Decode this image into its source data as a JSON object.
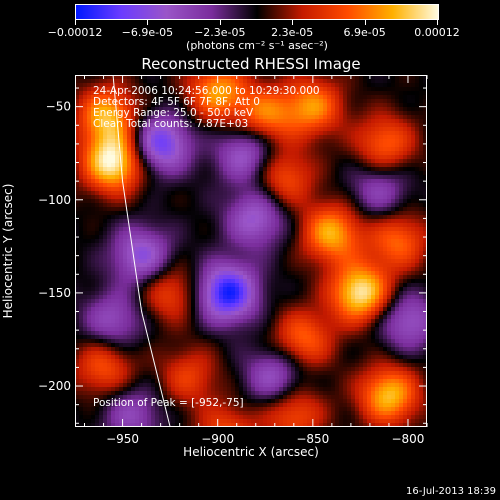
{
  "colorbar": {
    "tick_labels": [
      "-0.00012",
      "-6.9e-05",
      "-2.3e-05",
      "2.3e-05",
      "6.9e-05",
      "0.00012"
    ],
    "unit_label": "(photons cm⁻² s⁻¹ asec⁻²)",
    "range": [
      -0.00012,
      0.00012
    ],
    "colors": [
      "#0018ff",
      "#6b3cff",
      "#9a55c8",
      "#7a2d9c",
      "#000000",
      "#c41a00",
      "#ff4a00",
      "#ffb000",
      "#fffbe0"
    ]
  },
  "chart_data": {
    "type": "heatmap",
    "title": "Reconstructed RHESSI Image",
    "xlabel": "Heliocentric X (arcsec)",
    "ylabel": "Heliocentric Y (arcsec)",
    "xlim": [
      -975,
      -790
    ],
    "ylim": [
      -222,
      -33
    ],
    "x_ticks": [
      -950,
      -900,
      -850,
      -800
    ],
    "y_ticks": [
      -50,
      -100,
      -150,
      -200
    ],
    "x_tick_labels": [
      "−950",
      "−900",
      "−850",
      "−800"
    ],
    "y_tick_labels": [
      "−50",
      "−100",
      "−150",
      "−200"
    ],
    "annotations": [
      "24-Apr-2006 10:24:56.000 to 10:29:30.000",
      "Detectors: 4F 5F 6F 7F 8F, Att 0",
      "Energy Range: 25.0 - 50.0 keV",
      "Clean    Total counts: 7.87E+03"
    ],
    "peak_label": "Position of Peak = [-952,-75]",
    "peak_position": [
      -952,
      -75
    ],
    "limb_arc": [
      [
        -955,
        -33
      ],
      [
        -950,
        -90
      ],
      [
        -940,
        -160
      ],
      [
        -925,
        -222
      ]
    ],
    "blobs": [
      {
        "x": -955,
        "y": -80,
        "v": 1.0
      },
      {
        "x": -958,
        "y": -55,
        "v": 0.75
      },
      {
        "x": -900,
        "y": -42,
        "v": 0.7
      },
      {
        "x": -875,
        "y": -55,
        "v": 0.6
      },
      {
        "x": -850,
        "y": -50,
        "v": 0.65
      },
      {
        "x": -865,
        "y": -88,
        "v": 0.5
      },
      {
        "x": -812,
        "y": -70,
        "v": 0.55
      },
      {
        "x": -840,
        "y": -118,
        "v": 0.75
      },
      {
        "x": -805,
        "y": -122,
        "v": 0.55
      },
      {
        "x": -925,
        "y": -150,
        "v": 0.45
      },
      {
        "x": -915,
        "y": -195,
        "v": 0.4
      },
      {
        "x": -960,
        "y": -190,
        "v": 0.5
      },
      {
        "x": -825,
        "y": -150,
        "v": 0.95
      },
      {
        "x": -855,
        "y": -175,
        "v": 0.55
      },
      {
        "x": -810,
        "y": -205,
        "v": 0.8
      },
      {
        "x": -860,
        "y": -215,
        "v": 0.5
      },
      {
        "x": -895,
        "y": -225,
        "v": 0.45
      },
      {
        "x": -940,
        "y": -130,
        "v": -0.6
      },
      {
        "x": -930,
        "y": -70,
        "v": -0.75
      },
      {
        "x": -895,
        "y": -150,
        "v": -0.95
      },
      {
        "x": -880,
        "y": -110,
        "v": -0.55
      },
      {
        "x": -885,
        "y": -75,
        "v": -0.55
      },
      {
        "x": -955,
        "y": -165,
        "v": -0.45
      },
      {
        "x": -870,
        "y": -195,
        "v": -0.5
      },
      {
        "x": -800,
        "y": -165,
        "v": -0.5
      },
      {
        "x": -815,
        "y": -95,
        "v": -0.4
      },
      {
        "x": -945,
        "y": -215,
        "v": -0.4
      }
    ]
  },
  "footer": {
    "timestamp": "16-Jul-2013 18:39"
  }
}
